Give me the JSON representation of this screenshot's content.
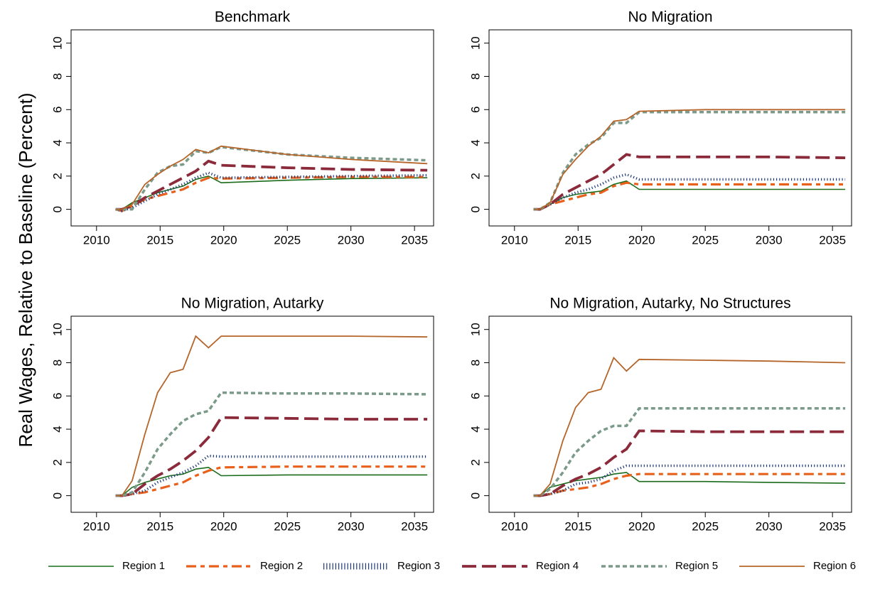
{
  "ylabel": "Real Wages, Relative to Baseline (Percent)",
  "chart_data": [
    {
      "type": "line",
      "title": "Benchmark",
      "x": [
        2011.5,
        2012,
        2012.8,
        2013.8,
        2014.8,
        2015.8,
        2016.8,
        2017.8,
        2018.8,
        2019.8,
        2025,
        2030,
        2036
      ],
      "xlim": [
        2008,
        2036.5
      ],
      "ylim": [
        -1,
        10.8
      ],
      "xticks": [
        2010,
        2015,
        2020,
        2025,
        2030,
        2035
      ],
      "yticks": [
        0,
        2,
        4,
        6,
        8,
        10
      ],
      "series": [
        {
          "name": "Region 1",
          "color": "#1a6b1a",
          "values": [
            0,
            0,
            0.4,
            0.7,
            1.0,
            1.2,
            1.4,
            1.8,
            2.0,
            1.6,
            1.75,
            1.85,
            1.9
          ]
        },
        {
          "name": "Region 2",
          "color": "#e8601c",
          "values": [
            0,
            -0.1,
            0.2,
            0.6,
            0.8,
            1.0,
            1.2,
            1.6,
            1.9,
            1.85,
            1.9,
            1.95,
            1.95
          ]
        },
        {
          "name": "Region 3",
          "color": "#1f3a7a",
          "values": [
            0,
            -0.1,
            0.1,
            0.5,
            0.9,
            1.2,
            1.5,
            1.9,
            2.2,
            1.9,
            1.95,
            2.0,
            2.05
          ]
        },
        {
          "name": "Region 4",
          "color": "#8b2a3a",
          "values": [
            0,
            0,
            0.2,
            0.7,
            1.1,
            1.5,
            1.9,
            2.3,
            2.9,
            2.65,
            2.5,
            2.4,
            2.35
          ]
        },
        {
          "name": "Region 5",
          "color": "#7a9a8a",
          "values": [
            0,
            0,
            0,
            1.2,
            2.2,
            2.6,
            2.7,
            3.5,
            3.4,
            3.75,
            3.3,
            3.1,
            2.95
          ]
        },
        {
          "name": "Region 6",
          "color": "#b5652a",
          "values": [
            0,
            0,
            0.3,
            1.5,
            2.1,
            2.6,
            3.0,
            3.6,
            3.4,
            3.8,
            3.3,
            3.0,
            2.75
          ]
        }
      ]
    },
    {
      "type": "line",
      "title": "No Migration",
      "x": [
        2011.5,
        2012,
        2012.8,
        2013.8,
        2014.8,
        2015.8,
        2016.8,
        2017.8,
        2018.8,
        2019.8,
        2025,
        2030,
        2036
      ],
      "xlim": [
        2008,
        2036.5
      ],
      "ylim": [
        -1,
        10.8
      ],
      "xticks": [
        2010,
        2015,
        2020,
        2025,
        2030,
        2035
      ],
      "yticks": [
        0,
        2,
        4,
        6,
        8,
        10
      ],
      "series": [
        {
          "name": "Region 1",
          "color": "#1a6b1a",
          "values": [
            0,
            0,
            0.3,
            0.7,
            0.9,
            1.0,
            1.1,
            1.5,
            1.7,
            1.2,
            1.2,
            1.2,
            1.2
          ]
        },
        {
          "name": "Region 2",
          "color": "#e8601c",
          "values": [
            0,
            0,
            0.3,
            0.5,
            0.7,
            0.9,
            1.0,
            1.4,
            1.6,
            1.5,
            1.5,
            1.5,
            1.5
          ]
        },
        {
          "name": "Region 3",
          "color": "#1f3a7a",
          "values": [
            0,
            0,
            0.3,
            0.7,
            1.0,
            1.2,
            1.5,
            1.9,
            2.1,
            1.8,
            1.8,
            1.8,
            1.8
          ]
        },
        {
          "name": "Region 4",
          "color": "#8b2a3a",
          "values": [
            0,
            0,
            0.3,
            0.9,
            1.3,
            1.7,
            2.1,
            2.7,
            3.3,
            3.15,
            3.15,
            3.15,
            3.1
          ]
        },
        {
          "name": "Region 5",
          "color": "#7a9a8a",
          "values": [
            0,
            0,
            0.4,
            2.2,
            3.3,
            3.9,
            4.3,
            5.2,
            5.2,
            5.85,
            5.85,
            5.85,
            5.85
          ]
        },
        {
          "name": "Region 6",
          "color": "#b5652a",
          "values": [
            0,
            0,
            0.4,
            2.1,
            3.0,
            3.8,
            4.4,
            5.3,
            5.4,
            5.9,
            6.0,
            6.0,
            6.0
          ]
        }
      ]
    },
    {
      "type": "line",
      "title": "No Migration, Autarky",
      "x": [
        2011.5,
        2012,
        2012.8,
        2013.8,
        2014.8,
        2015.8,
        2016.8,
        2017.8,
        2018.8,
        2019.8,
        2025,
        2030,
        2036
      ],
      "xlim": [
        2008,
        2036.5
      ],
      "ylim": [
        -1,
        10.8
      ],
      "xticks": [
        2010,
        2015,
        2020,
        2025,
        2030,
        2035
      ],
      "yticks": [
        0,
        2,
        4,
        6,
        8,
        10
      ],
      "series": [
        {
          "name": "Region 1",
          "color": "#1a6b1a",
          "values": [
            0,
            0,
            0.5,
            0.8,
            1.0,
            1.2,
            1.3,
            1.6,
            1.7,
            1.2,
            1.25,
            1.25,
            1.25
          ]
        },
        {
          "name": "Region 2",
          "color": "#e8601c",
          "values": [
            0,
            0,
            0.1,
            0.2,
            0.4,
            0.6,
            0.8,
            1.2,
            1.5,
            1.7,
            1.75,
            1.75,
            1.75
          ]
        },
        {
          "name": "Region 3",
          "color": "#1f3a7a",
          "values": [
            0,
            0,
            0.1,
            0.3,
            0.8,
            1.1,
            1.4,
            1.8,
            2.4,
            2.35,
            2.35,
            2.35,
            2.35
          ]
        },
        {
          "name": "Region 4",
          "color": "#8b2a3a",
          "values": [
            0,
            0,
            0.1,
            0.7,
            1.2,
            1.6,
            2.1,
            2.7,
            3.5,
            4.7,
            4.65,
            4.6,
            4.6
          ]
        },
        {
          "name": "Region 5",
          "color": "#7a9a8a",
          "values": [
            0,
            0,
            0.2,
            1.4,
            2.8,
            3.7,
            4.5,
            4.9,
            5.1,
            6.2,
            6.15,
            6.15,
            6.1
          ]
        },
        {
          "name": "Region 6",
          "color": "#b5652a",
          "values": [
            0,
            0,
            0.9,
            3.7,
            6.2,
            7.4,
            7.6,
            9.6,
            8.9,
            9.6,
            9.6,
            9.6,
            9.55
          ]
        }
      ]
    },
    {
      "type": "line",
      "title": "No Migration, Autarky, No Structures",
      "x": [
        2011.5,
        2012,
        2012.8,
        2013.8,
        2014.8,
        2015.8,
        2016.8,
        2017.8,
        2018.8,
        2019.8,
        2025,
        2030,
        2036
      ],
      "xlim": [
        2008,
        2036.5
      ],
      "ylim": [
        -1,
        10.8
      ],
      "xticks": [
        2010,
        2015,
        2020,
        2025,
        2030,
        2035
      ],
      "yticks": [
        0,
        2,
        4,
        6,
        8,
        10
      ],
      "series": [
        {
          "name": "Region 1",
          "color": "#1a6b1a",
          "values": [
            0,
            0,
            0.5,
            0.7,
            0.9,
            1.0,
            1.1,
            1.3,
            1.4,
            0.85,
            0.85,
            0.8,
            0.75
          ]
        },
        {
          "name": "Region 2",
          "color": "#e8601c",
          "values": [
            0,
            0,
            0.1,
            0.3,
            0.4,
            0.5,
            0.7,
            1.0,
            1.2,
            1.3,
            1.3,
            1.3,
            1.3
          ]
        },
        {
          "name": "Region 3",
          "color": "#1f3a7a",
          "values": [
            0,
            0,
            0.1,
            0.3,
            0.7,
            0.8,
            1.0,
            1.5,
            1.8,
            1.8,
            1.8,
            1.8,
            1.8
          ]
        },
        {
          "name": "Region 4",
          "color": "#8b2a3a",
          "values": [
            0,
            0,
            0.1,
            0.6,
            1.0,
            1.3,
            1.7,
            2.3,
            2.8,
            3.9,
            3.85,
            3.85,
            3.85
          ]
        },
        {
          "name": "Region 5",
          "color": "#7a9a8a",
          "values": [
            0,
            0,
            0.4,
            1.4,
            2.6,
            3.3,
            3.9,
            4.2,
            4.2,
            5.25,
            5.25,
            5.25,
            5.25
          ]
        },
        {
          "name": "Region 6",
          "color": "#b5652a",
          "values": [
            0,
            0,
            0.7,
            3.3,
            5.3,
            6.2,
            6.4,
            8.3,
            7.5,
            8.2,
            8.15,
            8.1,
            8.0
          ]
        }
      ]
    }
  ]
}
